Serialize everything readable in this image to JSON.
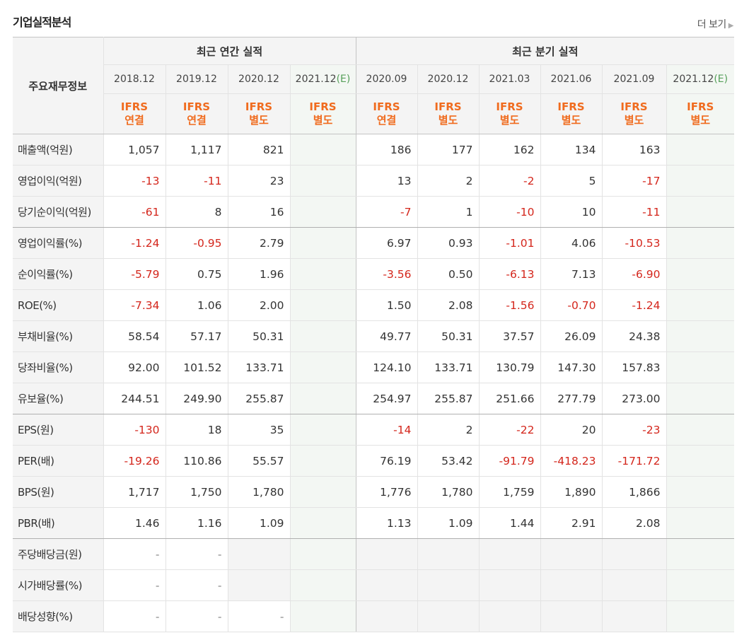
{
  "title": "기업실적분석",
  "more_label": "더 보기",
  "table": {
    "row_header": "주요재무정보",
    "group_annual": "최근 연간 실적",
    "group_quarter": "최근 분기 실적",
    "periods": [
      "2018.12",
      "2019.12",
      "2020.12",
      "2021.12(E)",
      "2020.09",
      "2020.12",
      "2021.03",
      "2021.06",
      "2021.09",
      "2021.12(E)"
    ],
    "ifrs_top": [
      "IFRS",
      "IFRS",
      "IFRS",
      "IFRS",
      "IFRS",
      "IFRS",
      "IFRS",
      "IFRS",
      "IFRS",
      "IFRS"
    ],
    "ifrs_bottom": [
      "연결",
      "연결",
      "별도",
      "별도",
      "연결",
      "별도",
      "별도",
      "별도",
      "별도",
      "별도"
    ],
    "rows": [
      {
        "label": "매출액(억원)",
        "values": [
          "1,057",
          "1,117",
          "821",
          "",
          "186",
          "177",
          "162",
          "134",
          "163",
          ""
        ]
      },
      {
        "label": "영업이익(억원)",
        "values": [
          "-13",
          "-11",
          "23",
          "",
          "13",
          "2",
          "-2",
          "5",
          "-17",
          ""
        ]
      },
      {
        "label": "당기순이익(억원)",
        "values": [
          "-61",
          "8",
          "16",
          "",
          "-7",
          "1",
          "-10",
          "10",
          "-11",
          ""
        ]
      },
      {
        "label": "영업이익률(%)",
        "values": [
          "-1.24",
          "-0.95",
          "2.79",
          "",
          "6.97",
          "0.93",
          "-1.01",
          "4.06",
          "-10.53",
          ""
        ]
      },
      {
        "label": "순이익률(%)",
        "values": [
          "-5.79",
          "0.75",
          "1.96",
          "",
          "-3.56",
          "0.50",
          "-6.13",
          "7.13",
          "-6.90",
          ""
        ]
      },
      {
        "label": "ROE(%)",
        "values": [
          "-7.34",
          "1.06",
          "2.00",
          "",
          "1.50",
          "2.08",
          "-1.56",
          "-0.70",
          "-1.24",
          ""
        ]
      },
      {
        "label": "부채비율(%)",
        "values": [
          "58.54",
          "57.17",
          "50.31",
          "",
          "49.77",
          "50.31",
          "37.57",
          "26.09",
          "24.38",
          ""
        ]
      },
      {
        "label": "당좌비율(%)",
        "values": [
          "92.00",
          "101.52",
          "133.71",
          "",
          "124.10",
          "133.71",
          "130.79",
          "147.30",
          "157.83",
          ""
        ]
      },
      {
        "label": "유보율(%)",
        "values": [
          "244.51",
          "249.90",
          "255.87",
          "",
          "254.97",
          "255.87",
          "251.66",
          "277.79",
          "273.00",
          ""
        ]
      },
      {
        "label": "EPS(원)",
        "values": [
          "-130",
          "18",
          "35",
          "",
          "-14",
          "2",
          "-22",
          "20",
          "-23",
          ""
        ]
      },
      {
        "label": "PER(배)",
        "values": [
          "-19.26",
          "110.86",
          "55.57",
          "",
          "76.19",
          "53.42",
          "-91.79",
          "-418.23",
          "-171.72",
          ""
        ]
      },
      {
        "label": "BPS(원)",
        "values": [
          "1,717",
          "1,750",
          "1,780",
          "",
          "1,776",
          "1,780",
          "1,759",
          "1,890",
          "1,866",
          ""
        ]
      },
      {
        "label": "PBR(배)",
        "values": [
          "1.46",
          "1.16",
          "1.09",
          "",
          "1.13",
          "1.09",
          "1.44",
          "2.91",
          "2.08",
          ""
        ]
      },
      {
        "label": "주당배당금(원)",
        "values": [
          "-",
          "-",
          "",
          "",
          "",
          "",
          "",
          "",
          "",
          ""
        ]
      },
      {
        "label": "시가배당률(%)",
        "values": [
          "-",
          "-",
          "",
          "",
          "",
          "",
          "",
          "",
          "",
          ""
        ]
      },
      {
        "label": "배당성향(%)",
        "values": [
          "-",
          "-",
          "-",
          "",
          "",
          "",
          "",
          "",
          "",
          ""
        ]
      }
    ]
  }
}
